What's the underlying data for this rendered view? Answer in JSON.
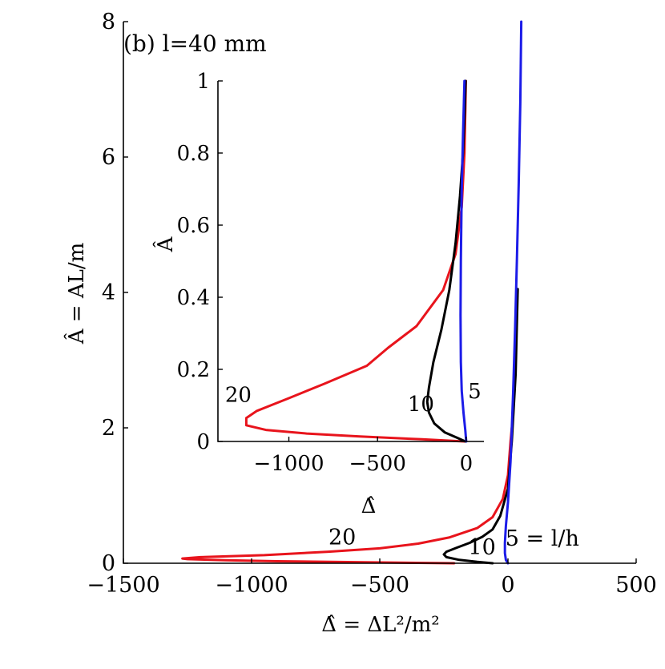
{
  "chart_data": [
    {
      "type": "line",
      "panel_label": "(b) l=40 mm",
      "xlabel": "Δ̂ = ΔL²/m²",
      "ylabel": "Â = AL/m",
      "xlim": [
        -1500,
        500
      ],
      "ylim": [
        0,
        8
      ],
      "xticks": [
        -1500,
        -1000,
        -500,
        0,
        500
      ],
      "yticks": [
        0,
        2,
        4,
        6,
        8
      ],
      "xtick_labels": [
        "−1500",
        "−1000",
        "−500",
        "0",
        "500"
      ],
      "ytick_labels": [
        "0",
        "2",
        "4",
        "6",
        "8"
      ],
      "grid": false,
      "series": [
        {
          "name": "20",
          "color": "#e8141c",
          "label_at": [
            -700,
            0.28
          ],
          "x": [
            -210,
            -560,
            -900,
            -1100,
            -1250,
            -1270,
            -1200,
            -950,
            -700,
            -500,
            -350,
            -230,
            -120,
            -60,
            -20,
            0,
            10,
            15
          ],
          "y": [
            0.0,
            0.015,
            0.03,
            0.045,
            0.06,
            0.07,
            0.09,
            0.12,
            0.17,
            0.22,
            0.29,
            0.38,
            0.52,
            0.68,
            0.95,
            1.3,
            1.8,
            2.0
          ]
        },
        {
          "name": "10",
          "color": "#000000",
          "label_at": [
            -155,
            0.13
          ],
          "x": [
            -60,
            -120,
            -190,
            -240,
            -250,
            -240,
            -200,
            -150,
            -100,
            -60,
            -30,
            0,
            15,
            30,
            38
          ],
          "y": [
            0.0,
            0.02,
            0.05,
            0.09,
            0.13,
            0.17,
            0.23,
            0.3,
            0.39,
            0.5,
            0.7,
            1.1,
            1.8,
            2.8,
            4.05
          ]
        },
        {
          "name": "5 = l/h",
          "color": "#1c1ce8",
          "label_at": [
            -10,
            0.26
          ],
          "x": [
            0,
            -8,
            -12,
            -12,
            -8,
            0,
            10,
            20,
            28,
            35,
            42,
            48,
            52
          ],
          "y": [
            0.0,
            0.05,
            0.15,
            0.3,
            0.55,
            0.9,
            1.5,
            2.5,
            3.5,
            4.5,
            5.6,
            6.8,
            8.0
          ]
        }
      ]
    },
    {
      "type": "line",
      "xlabel": "Δ̂",
      "ylabel": "Â",
      "xlim": [
        -1400,
        100
      ],
      "ylim": [
        0,
        1
      ],
      "xticks": [
        -1000,
        -500,
        0
      ],
      "yticks": [
        0,
        0.2,
        0.4,
        0.6,
        0.8,
        1
      ],
      "xtick_labels": [
        "−1000",
        "−500",
        "0"
      ],
      "ytick_labels": [
        "0",
        "0.2",
        "0.4",
        "0.6",
        "0.8",
        "1"
      ],
      "grid": false,
      "series": [
        {
          "name": "20",
          "color": "#e8141c",
          "label_at": [
            -1360,
            0.11
          ],
          "x": [
            -10,
            -250,
            -600,
            -900,
            -1130,
            -1240,
            -1240,
            -1180,
            -1000,
            -800,
            -560,
            -440,
            -280,
            -130,
            -60,
            -25,
            -10,
            -5,
            -2
          ],
          "y": [
            0.0,
            0.006,
            0.014,
            0.022,
            0.032,
            0.045,
            0.065,
            0.085,
            0.12,
            0.16,
            0.21,
            0.26,
            0.32,
            0.42,
            0.52,
            0.65,
            0.8,
            0.92,
            1.0
          ]
        },
        {
          "name": "10",
          "color": "#000000",
          "label_at": [
            -330,
            0.085
          ],
          "x": [
            -5,
            -50,
            -120,
            -180,
            -210,
            -220,
            -210,
            -185,
            -140,
            -95,
            -60,
            -35,
            -18,
            -8,
            -3
          ],
          "y": [
            0.0,
            0.01,
            0.025,
            0.05,
            0.08,
            0.11,
            0.15,
            0.22,
            0.31,
            0.42,
            0.55,
            0.68,
            0.8,
            0.92,
            1.0
          ]
        },
        {
          "name": "5",
          "color": "#1c1ce8",
          "label_at": [
            10,
            0.12
          ],
          "x": [
            0,
            -5,
            -15,
            -25,
            -30,
            -32,
            -30,
            -25,
            -18,
            -10
          ],
          "y": [
            0.0,
            0.03,
            0.08,
            0.14,
            0.22,
            0.35,
            0.5,
            0.7,
            0.85,
            1.0
          ]
        }
      ]
    }
  ]
}
